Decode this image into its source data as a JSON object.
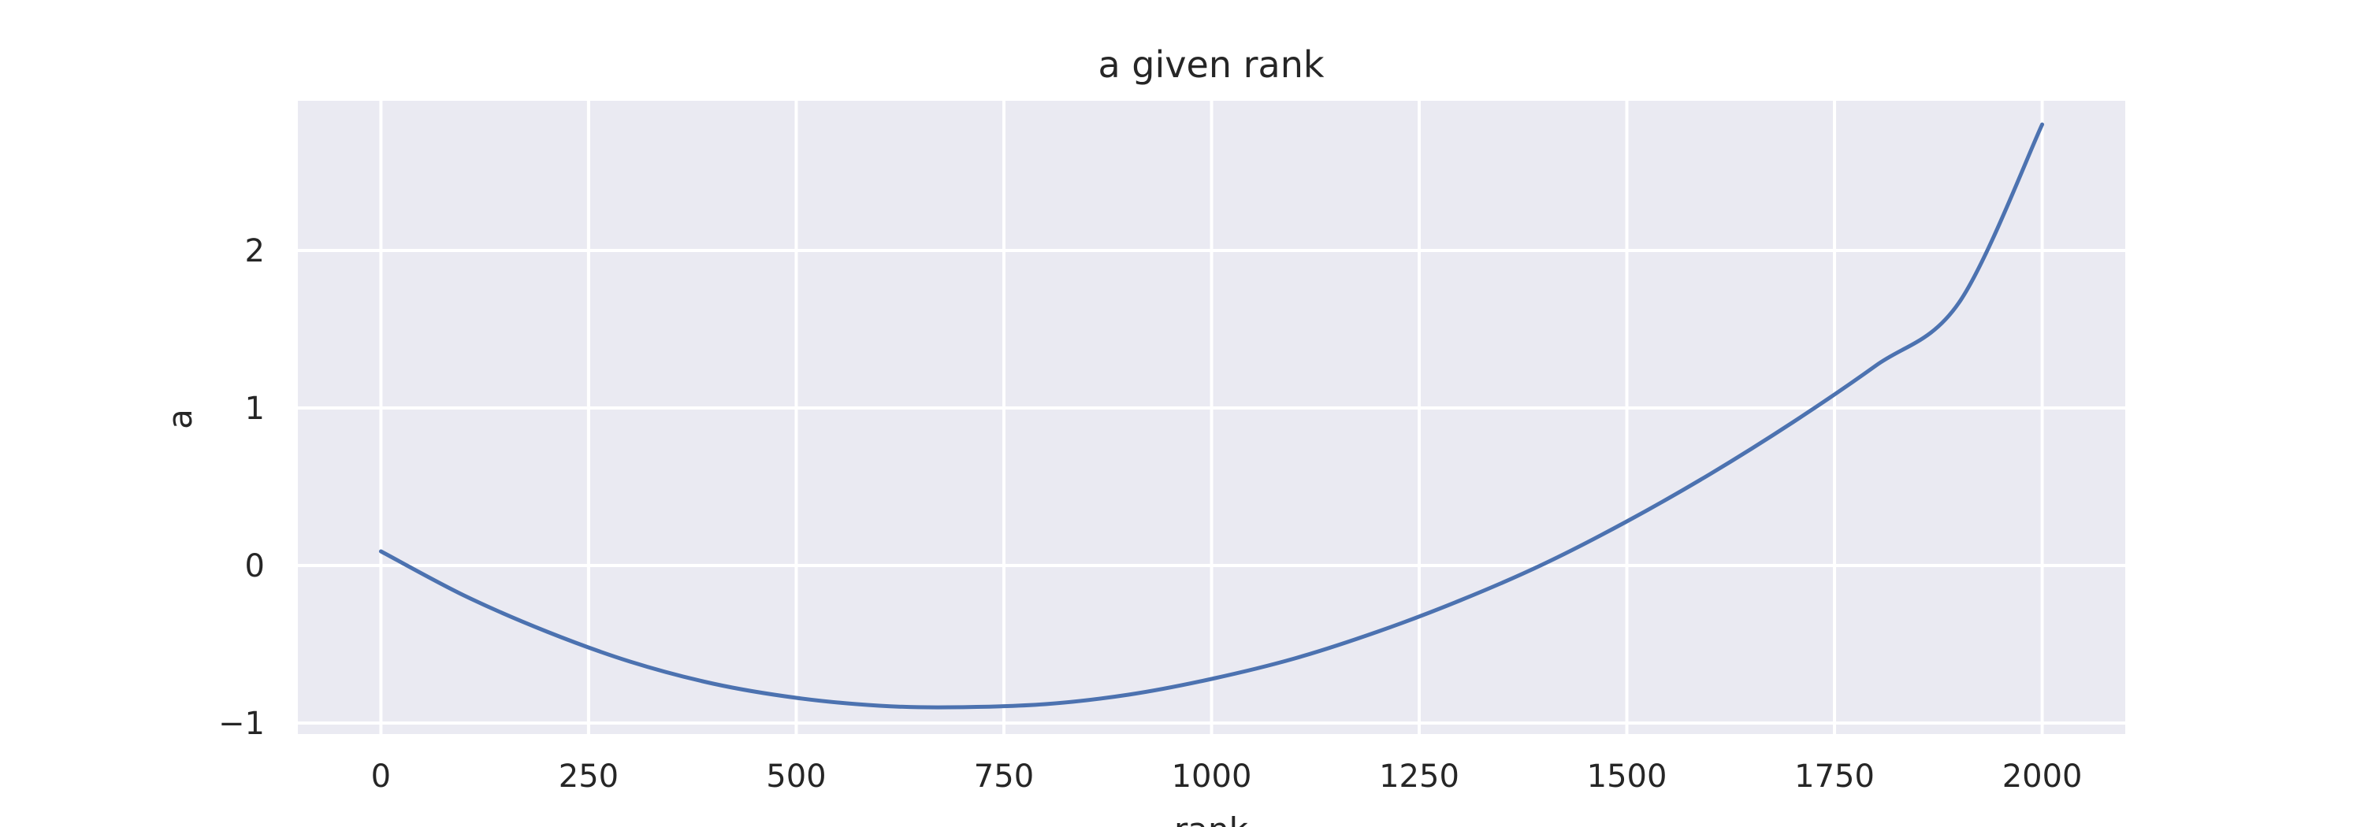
{
  "chart_data": {
    "type": "line",
    "title": "a given rank",
    "xlabel": "rank",
    "ylabel": "a",
    "xlim": [
      -100,
      2100
    ],
    "ylim": [
      -1.07,
      2.95
    ],
    "xticks": [
      0,
      250,
      500,
      750,
      1000,
      1250,
      1500,
      1750,
      2000
    ],
    "xtick_labels": [
      "0",
      "250",
      "500",
      "750",
      "1000",
      "1250",
      "1500",
      "1750",
      "2000"
    ],
    "yticks": [
      -1,
      0,
      1,
      2
    ],
    "ytick_labels": [
      "−1",
      "0",
      "1",
      "2"
    ],
    "grid": true,
    "series": [
      {
        "color": "#4c72b0",
        "x": [
          0,
          100,
          200,
          300,
          400,
          500,
          600,
          684,
          800,
          900,
          1000,
          1100,
          1200,
          1300,
          1400,
          1500,
          1600,
          1700,
          1800,
          1900,
          2000
        ],
        "y": [
          0.09,
          -0.19,
          -0.42,
          -0.61,
          -0.75,
          -0.84,
          -0.89,
          -0.9,
          -0.88,
          -0.82,
          -0.72,
          -0.59,
          -0.42,
          -0.22,
          0.01,
          0.28,
          0.58,
          0.91,
          1.27,
          1.67,
          2.8
        ]
      }
    ],
    "colors": {
      "plot_background": "#eaeaf2",
      "grid": "#ffffff",
      "text": "#262626"
    }
  }
}
